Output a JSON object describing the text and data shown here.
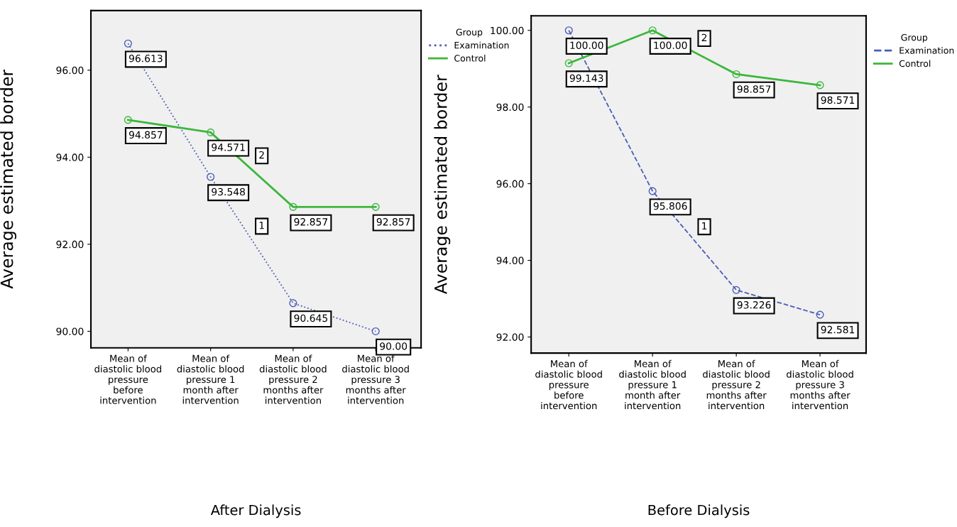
{
  "chart_data": [
    {
      "type": "line",
      "title": "After Dialysis",
      "ylabel": "Average estimated border",
      "legend_title": "Group",
      "legend": "top right",
      "categories": [
        "Mean of\ndiastolic blood\npressure\nbefore\nintervention",
        "Mean of\ndiastolic blood\npressure 1\nmonth after\nintervention",
        "Mean of\ndiastolic blood\npressure 2\nmonths after\nintervention",
        "Mean of\ndiastolic blood\npressure 3\nmonths after\nintervention"
      ],
      "ylim": [
        89.62,
        97.37
      ],
      "yticks": [
        {
          "value": 90,
          "label": "90.00"
        },
        {
          "value": 92,
          "label": "92.00"
        },
        {
          "value": 94,
          "label": "94.00"
        },
        {
          "value": 96,
          "label": "96.00"
        }
      ],
      "marker": "circle",
      "grid": false,
      "annotations": [
        "1",
        "2"
      ],
      "series": [
        {
          "name": "Examination",
          "color": "#4a5db5",
          "line_style": "dotted",
          "values": [
            96.613,
            93.548,
            90.645,
            90.0
          ],
          "value_labels": [
            "96.613",
            "93.548",
            "90.645",
            "90.00"
          ]
        },
        {
          "name": "Control",
          "color": "#3cb73c",
          "line_style": "solid",
          "values": [
            94.857,
            94.571,
            92.857,
            92.857
          ],
          "value_labels": [
            "94.857",
            "94.571",
            "92.857",
            "92.857"
          ]
        }
      ]
    },
    {
      "type": "line",
      "title": "Before Dialysis",
      "ylabel": "Average estimated border",
      "legend_title": "Group",
      "legend": "top right",
      "categories": [
        "Mean of\ndiastolic blood\npressure\nbefore\nintervention",
        "Mean of\ndiastolic blood\npressure 1\nmonth after\nintervention",
        "Mean of\ndiastolic blood\npressure 2\nmonths after\nintervention",
        "Mean of\ndiastolic blood\npressure 3\nmonths after\nintervention"
      ],
      "ylim": [
        91.58,
        100.38
      ],
      "yticks": [
        {
          "value": 92,
          "label": "92.00"
        },
        {
          "value": 94,
          "label": "94.00"
        },
        {
          "value": 96,
          "label": "96.00"
        },
        {
          "value": 98,
          "label": "98.00"
        },
        {
          "value": 100,
          "label": "100.00"
        }
      ],
      "marker": "circle",
      "grid": false,
      "annotations": [
        "1",
        "2"
      ],
      "series": [
        {
          "name": "Examination",
          "color": "#4a5db5",
          "line_style": "dashed",
          "values": [
            100.0,
            95.806,
            93.226,
            92.581
          ],
          "value_labels": [
            "100.00",
            "95.806",
            "93.226",
            "92.581"
          ]
        },
        {
          "name": "Control",
          "color": "#3cb73c",
          "line_style": "solid",
          "values": [
            99.143,
            100.0,
            98.857,
            98.571
          ],
          "value_labels": [
            "99.143",
            "100.00",
            "98.857",
            "98.571"
          ]
        }
      ]
    }
  ]
}
